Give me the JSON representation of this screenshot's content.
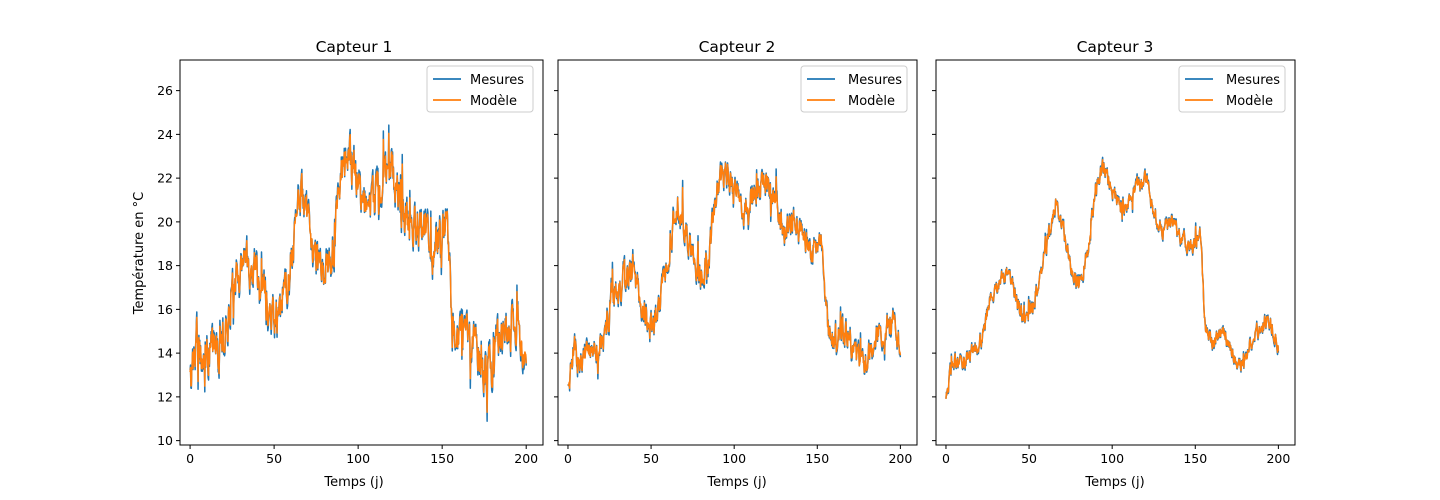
{
  "figure": {
    "ylabel": "Température en °C"
  },
  "colors": {
    "measure": "#1f77b4",
    "model": "#ff7f0e"
  },
  "chart_data": [
    {
      "type": "line",
      "title": "Capteur 1",
      "xlabel": "Temps (j)",
      "ylabel": "Température en °C",
      "xlim": [
        -6,
        210
      ],
      "ylim": [
        9.8,
        27.4
      ],
      "xticks": [
        0,
        50,
        100,
        150,
        200
      ],
      "yticks": [
        10,
        12,
        14,
        16,
        18,
        20,
        22,
        24,
        26
      ],
      "legend": {
        "position": "top-right",
        "entries": [
          "Mesures",
          "Modèle"
        ]
      },
      "grid": false,
      "noise": 0.9,
      "series": [
        {
          "name": "Mesures",
          "color": "#1f77b4"
        },
        {
          "name": "Modèle",
          "color": "#ff7f0e"
        }
      ],
      "x": [
        0,
        4,
        8,
        13,
        18,
        22,
        27,
        32,
        37,
        42,
        47,
        52,
        57,
        62,
        66,
        70,
        75,
        80,
        85,
        90,
        95,
        100,
        105,
        110,
        115,
        120,
        125,
        130,
        135,
        140,
        145,
        150,
        153,
        156,
        160,
        165,
        170,
        175,
        180,
        185,
        190,
        195,
        200
      ],
      "values": [
        12.7,
        14.5,
        13.6,
        14.2,
        14.0,
        15.2,
        17.5,
        18.2,
        18.0,
        17.0,
        16.2,
        15.8,
        17.0,
        19.0,
        21.5,
        20.0,
        18.5,
        17.2,
        18.5,
        22.0,
        23.0,
        21.5,
        20.5,
        21.0,
        22.0,
        22.5,
        21.0,
        19.5,
        20.0,
        19.5,
        18.5,
        19.5,
        20.0,
        15.0,
        14.5,
        15.0,
        14.5,
        13.0,
        13.5,
        15.0,
        15.0,
        15.5,
        14.0
      ]
    },
    {
      "type": "line",
      "title": "Capteur 2",
      "xlabel": "Temps (j)",
      "ylabel": "",
      "xlim": [
        -6,
        210
      ],
      "ylim": [
        9.8,
        27.4
      ],
      "xticks": [
        0,
        50,
        100,
        150,
        200
      ],
      "yticks": [
        10,
        12,
        14,
        16,
        18,
        20,
        22,
        24,
        26
      ],
      "legend": {
        "position": "top-right",
        "entries": [
          "Mesures",
          "Modèle"
        ]
      },
      "grid": false,
      "noise": 0.6,
      "series": [
        {
          "name": "Mesures",
          "color": "#1f77b4"
        },
        {
          "name": "Modèle",
          "color": "#ff7f0e"
        }
      ],
      "x": [
        0,
        4,
        8,
        13,
        18,
        22,
        27,
        32,
        37,
        42,
        47,
        52,
        57,
        62,
        66,
        70,
        75,
        80,
        85,
        90,
        95,
        100,
        105,
        110,
        115,
        120,
        125,
        130,
        135,
        140,
        145,
        150,
        153,
        156,
        160,
        165,
        170,
        175,
        180,
        185,
        190,
        195,
        200
      ],
      "values": [
        12.5,
        14.2,
        13.5,
        14.0,
        14.2,
        14.8,
        16.5,
        17.2,
        17.8,
        17.0,
        15.5,
        15.2,
        17.0,
        19.0,
        21.0,
        19.8,
        18.5,
        17.5,
        18.5,
        21.5,
        22.5,
        21.5,
        20.5,
        21.0,
        21.5,
        22.0,
        20.5,
        19.5,
        20.0,
        19.5,
        18.5,
        18.8,
        19.5,
        15.2,
        14.5,
        15.0,
        14.5,
        13.5,
        13.5,
        14.8,
        15.2,
        15.5,
        14.3
      ]
    },
    {
      "type": "line",
      "title": "Capteur 3",
      "xlabel": "Temps (j)",
      "ylabel": "",
      "xlim": [
        -6,
        210
      ],
      "ylim": [
        9.8,
        27.4
      ],
      "xticks": [
        0,
        50,
        100,
        150,
        200
      ],
      "yticks": [
        10,
        12,
        14,
        16,
        18,
        20,
        22,
        24,
        26
      ],
      "legend": {
        "position": "top-right",
        "entries": [
          "Mesures",
          "Modèle"
        ]
      },
      "grid": false,
      "noise": 0.35,
      "series": [
        {
          "name": "Mesures",
          "color": "#1f77b4"
        },
        {
          "name": "Modèle",
          "color": "#ff7f0e"
        }
      ],
      "x": [
        0,
        4,
        8,
        13,
        18,
        22,
        27,
        32,
        37,
        42,
        47,
        52,
        57,
        62,
        66,
        70,
        75,
        80,
        85,
        90,
        95,
        100,
        105,
        110,
        115,
        120,
        125,
        130,
        135,
        140,
        145,
        150,
        153,
        156,
        160,
        165,
        170,
        175,
        180,
        185,
        190,
        195,
        200
      ],
      "values": [
        11.9,
        13.7,
        13.5,
        13.8,
        14.2,
        14.8,
        16.5,
        17.2,
        17.8,
        16.5,
        15.5,
        16.0,
        17.5,
        19.5,
        21.0,
        19.8,
        18.0,
        17.0,
        18.5,
        21.5,
        22.5,
        21.5,
        20.5,
        21.0,
        21.5,
        22.0,
        20.5,
        19.5,
        20.0,
        19.5,
        19.0,
        19.0,
        19.5,
        15.0,
        14.5,
        15.0,
        14.5,
        13.5,
        13.5,
        14.8,
        15.2,
        15.5,
        14.4
      ]
    }
  ]
}
